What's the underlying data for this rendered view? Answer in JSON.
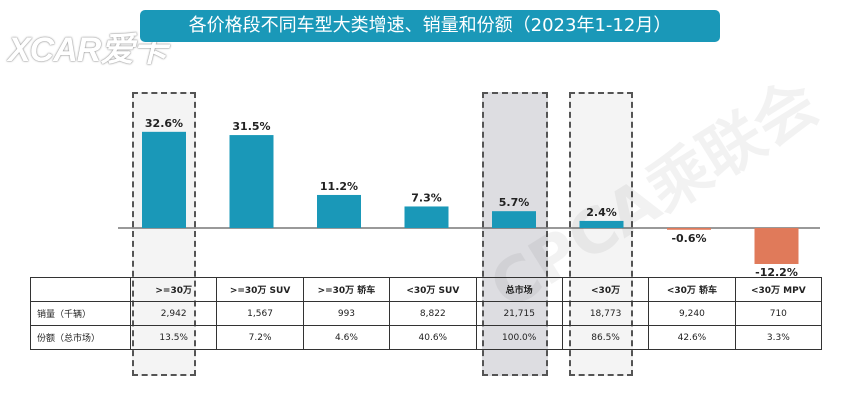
{
  "logo": {
    "text": "XCAR爱卡"
  },
  "title": "各价格段不同车型大类增速、销量和份额（2023年1-12月）",
  "watermark": "CPCA乘联会",
  "colors": {
    "title_bg": "#1a98b8",
    "bar_positive": "#1a98b8",
    "bar_negative": "#e07a5a"
  },
  "chart_data": {
    "type": "bar",
    "categories": [
      ">=30万",
      ">=30万 SUV",
      ">=30万 轿车",
      "<30万 SUV",
      "总市场",
      "<30万",
      "<30万 轿车",
      "<30万 MPV"
    ],
    "values": [
      32.6,
      31.5,
      11.2,
      7.3,
      5.7,
      2.4,
      -0.6,
      -12.2
    ],
    "value_labels": [
      "32.6%",
      "31.5%",
      "11.2%",
      "7.3%",
      "5.7%",
      "2.4%",
      "-0.6%",
      "-12.2%"
    ],
    "title": "各价格段不同车型大类增速、销量和份额（2023年1-12月）",
    "xlabel": "",
    "ylabel": "",
    "ylim": [
      -14,
      36
    ],
    "grid": false
  },
  "table": {
    "header": [
      "",
      ">=30万",
      ">=30万 SUV",
      ">=30万 轿车",
      "<30万 SUV",
      "总市场",
      "<30万",
      "<30万 轿车",
      "<30万 MPV"
    ],
    "rows": [
      {
        "label": "销量（千辆）",
        "cells": [
          "2,942",
          "1,567",
          "993",
          "8,822",
          "21,715",
          "18,773",
          "9,240",
          "710"
        ]
      },
      {
        "label": "份额（总市场）",
        "cells": [
          "13.5%",
          "7.2%",
          "4.6%",
          "40.6%",
          "100.0%",
          "86.5%",
          "42.6%",
          "3.3%"
        ]
      }
    ]
  }
}
